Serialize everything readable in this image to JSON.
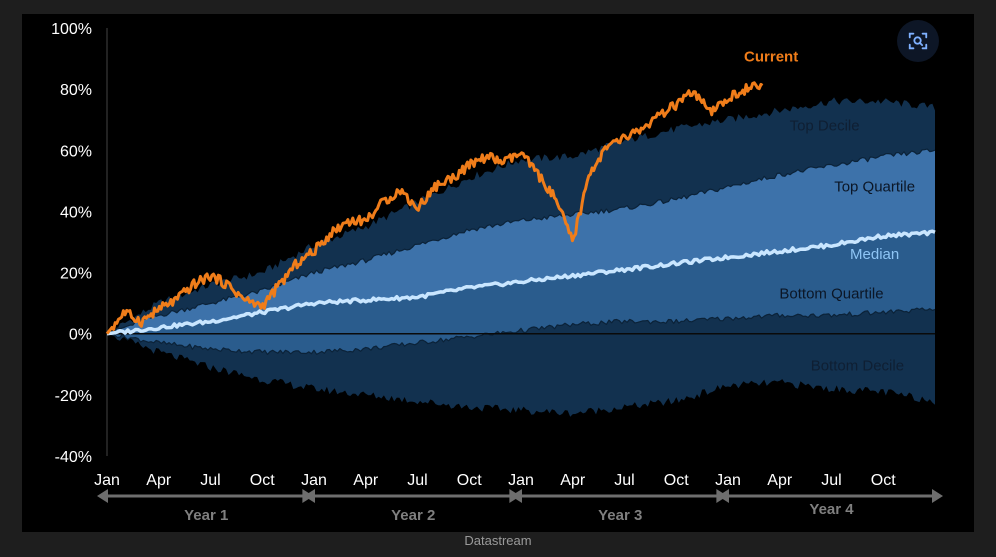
{
  "source": "Datastream",
  "lens_icon": "image-search-icon",
  "colors": {
    "background": "#000000",
    "frame": "#1e1e1e",
    "top_decile_band": "#12314f",
    "top_quartile_band": "#2a5c8d",
    "quartile_core_band": "#3d72aa",
    "bottom_quartile_band": "#1a3d62",
    "bottom_decile_band": "#12314f",
    "median": "#c9e6ff",
    "current": "#f07d1a",
    "axis_text": "#ffffff",
    "year_arrow": "#6e6e6e"
  },
  "chart_data": {
    "type": "area",
    "title": "",
    "xlabel": "",
    "ylabel": "",
    "ylim": [
      -40,
      100
    ],
    "yticks": [
      "100%",
      "80%",
      "60%",
      "40%",
      "20%",
      "0%",
      "-20%",
      "-40%"
    ],
    "ytick_values": [
      100,
      80,
      60,
      40,
      20,
      0,
      -20,
      -40
    ],
    "xticks": [
      "Jan",
      "Apr",
      "Jul",
      "Oct",
      "Jan",
      "Apr",
      "Jul",
      "Oct",
      "Jan",
      "Apr",
      "Jul",
      "Oct",
      "Jan",
      "Apr",
      "Jul",
      "Oct"
    ],
    "x_months": [
      0,
      3,
      6,
      9,
      12,
      15,
      18,
      21,
      24,
      27,
      30,
      33,
      36,
      39,
      42,
      45
    ],
    "xlim": [
      0,
      48
    ],
    "years": [
      {
        "label": "Year 1",
        "start": 0,
        "end": 11.5
      },
      {
        "label": "Year 2",
        "start": 12,
        "end": 23.5
      },
      {
        "label": "Year 3",
        "start": 24,
        "end": 35.5
      },
      {
        "label": "Year 4",
        "start": 36,
        "end": 48
      }
    ],
    "months": [
      0,
      3,
      6,
      9,
      12,
      15,
      18,
      21,
      24,
      27,
      30,
      33,
      36,
      39,
      42,
      45,
      48
    ],
    "series": [
      {
        "name": "Top Decile",
        "values": [
          0,
          10,
          16,
          20,
          29,
          35,
          43,
          51,
          57,
          58,
          63,
          67,
          70,
          73,
          76,
          76,
          74
        ]
      },
      {
        "name": "Top Quartile",
        "values": [
          0,
          6,
          10,
          14,
          20,
          24,
          29,
          34,
          37,
          39,
          41,
          44,
          48,
          52,
          55,
          58,
          60
        ]
      },
      {
        "name": "Median",
        "values": [
          0,
          2,
          4,
          7,
          10,
          11,
          12,
          15,
          17,
          19,
          21,
          23,
          25,
          27,
          29,
          32,
          33
        ]
      },
      {
        "name": "Bottom Quartile",
        "values": [
          0,
          -3,
          -5,
          -6,
          -6,
          -5,
          -3,
          -1,
          1,
          3,
          4,
          4,
          5,
          6,
          6,
          7,
          8
        ]
      },
      {
        "name": "Bottom Decile",
        "values": [
          0,
          -6,
          -11,
          -15,
          -18,
          -20,
          -22,
          -24,
          -25,
          -26,
          -24,
          -22,
          -17,
          -16,
          -18,
          -19,
          -22
        ]
      }
    ],
    "current": {
      "name": "Current",
      "months": [
        0,
        1,
        2,
        3,
        4,
        5,
        6,
        7,
        8,
        9,
        10,
        11,
        12,
        13,
        14,
        15,
        16,
        17,
        18,
        19,
        20,
        21,
        22,
        23,
        24,
        25,
        26,
        27,
        28,
        29,
        30,
        31,
        32,
        33,
        34,
        35,
        36,
        37,
        38
      ],
      "values": [
        0,
        7,
        4,
        8,
        11,
        16,
        19,
        16,
        11,
        9,
        16,
        23,
        27,
        33,
        37,
        37,
        43,
        47,
        41,
        48,
        51,
        55,
        58,
        56,
        59,
        52,
        44,
        30,
        53,
        61,
        64,
        67,
        71,
        75,
        79,
        72,
        77,
        80,
        81
      ]
    },
    "series_labels": [
      {
        "text": "Top Decile",
        "month": 41.6,
        "value": 66.5
      },
      {
        "text": "Top Quartile",
        "month": 44.5,
        "value": 46.5
      },
      {
        "text": "Median",
        "month": 44.5,
        "value": 24.5
      },
      {
        "text": "Bottom Quartile",
        "month": 42,
        "value": 11.5
      },
      {
        "text": "Bottom Decile",
        "month": 43.5,
        "value": -12
      },
      {
        "text": "Current",
        "month": 38.5,
        "value": 89
      }
    ],
    "grid": false,
    "legend": "inline labels"
  }
}
